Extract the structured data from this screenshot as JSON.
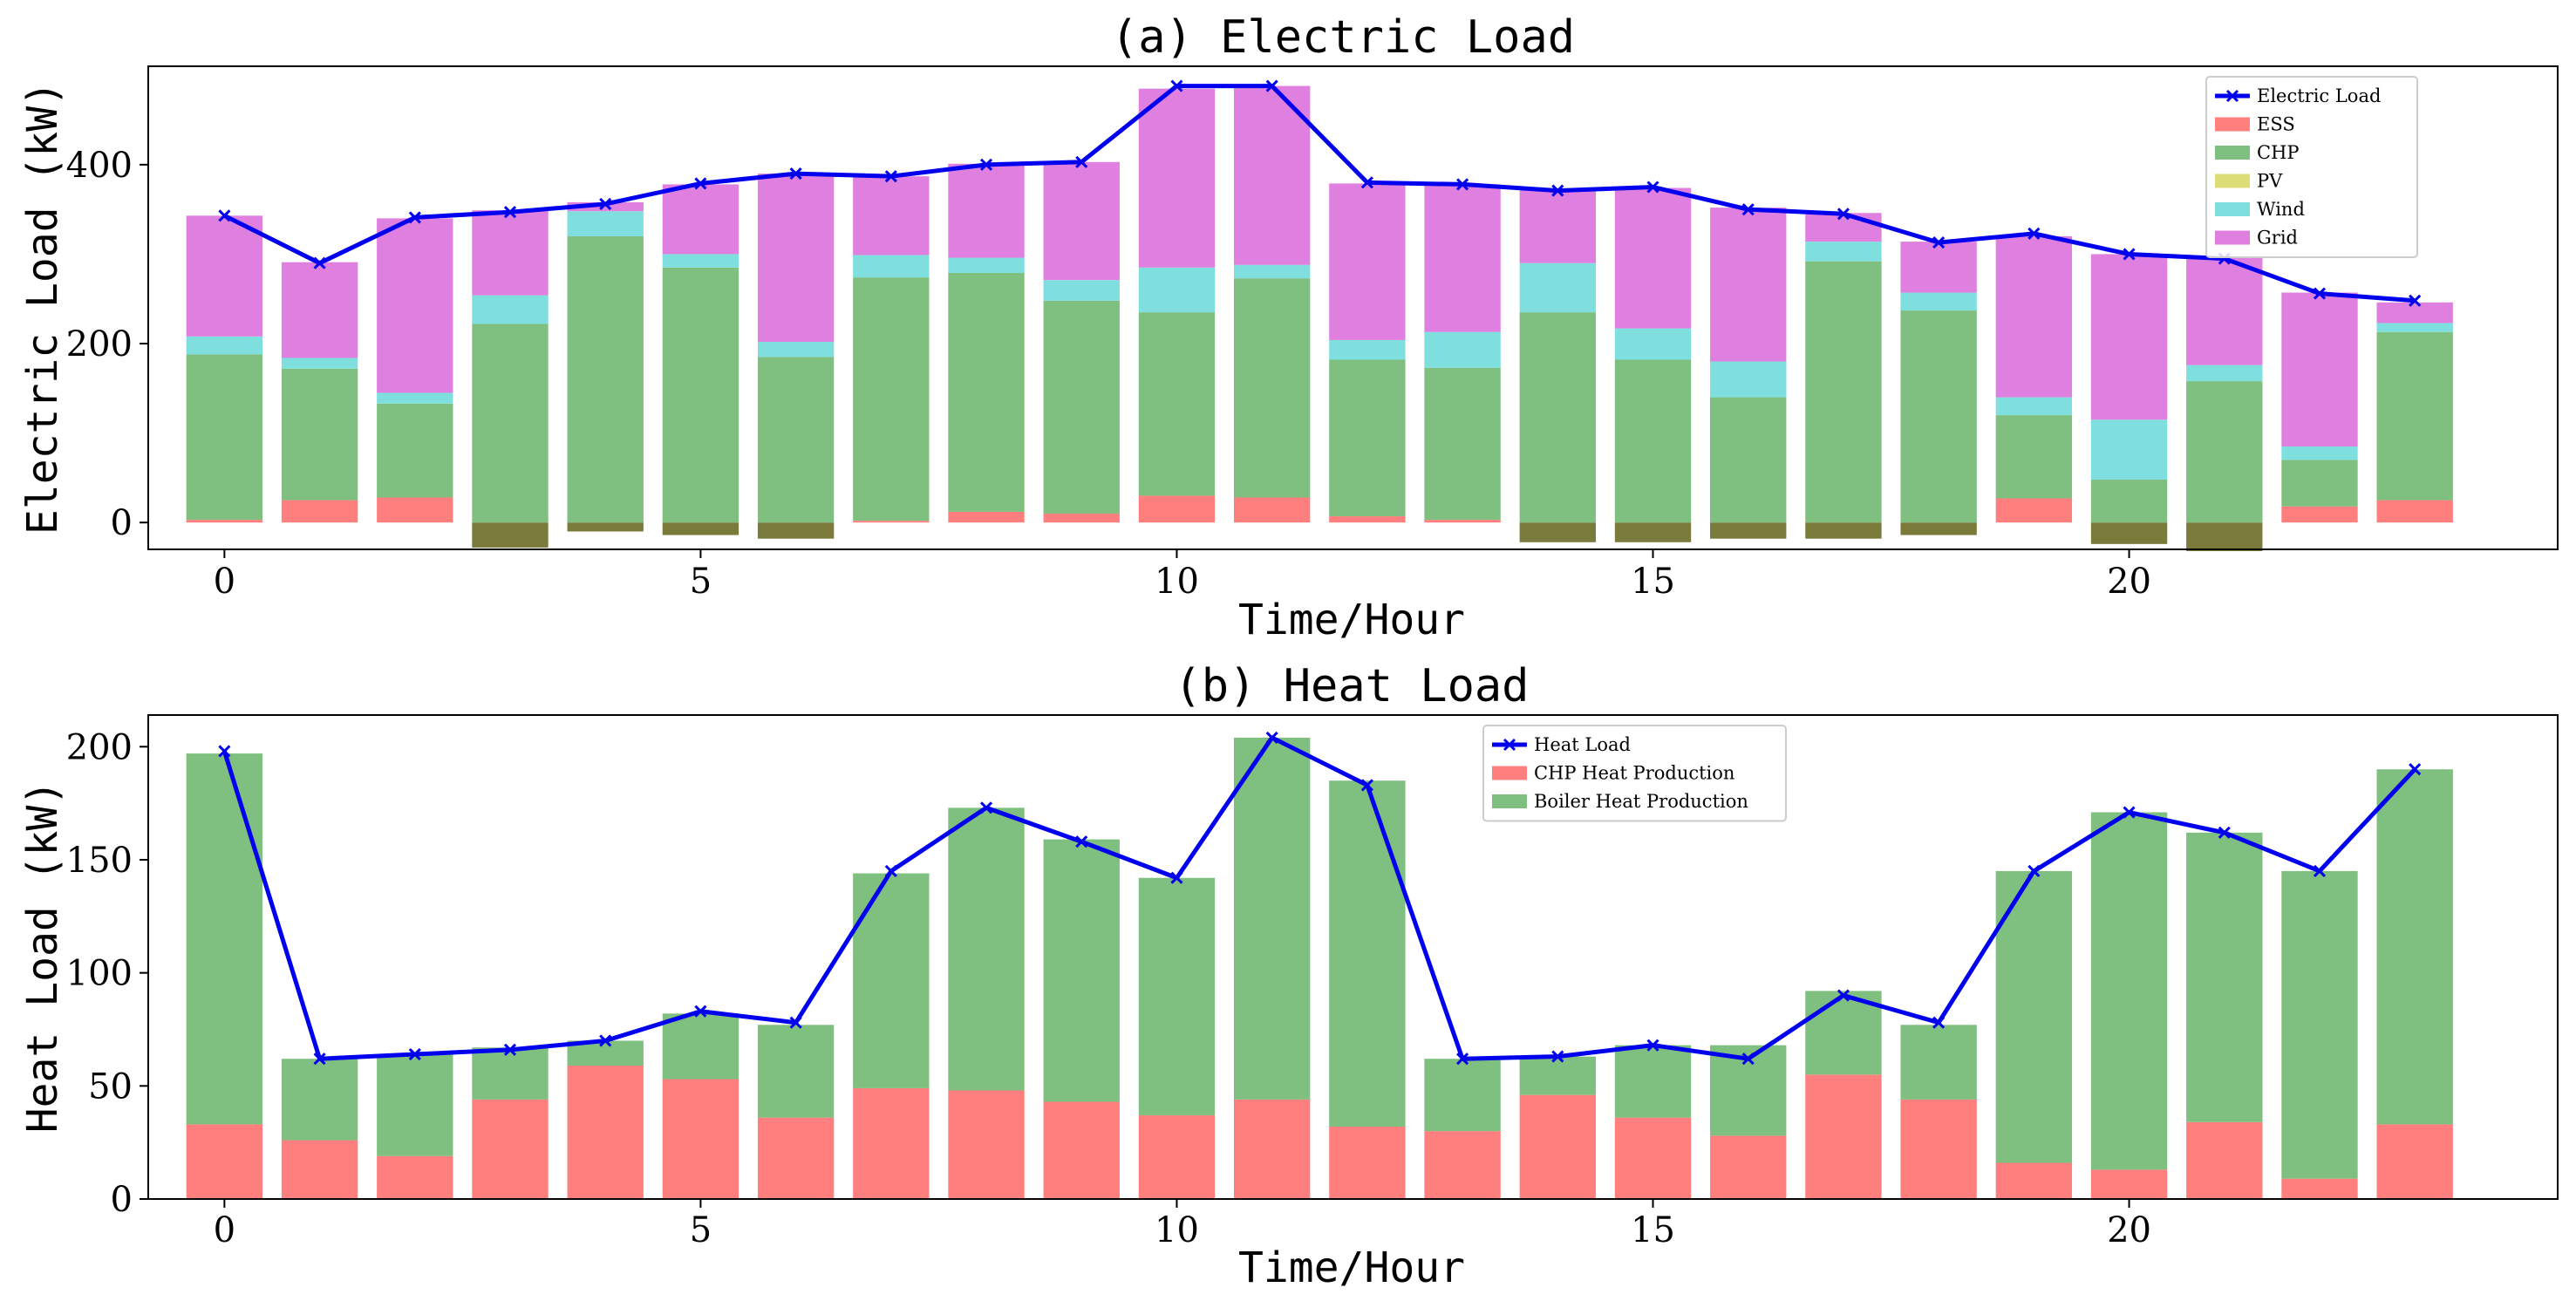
{
  "chart_data": [
    {
      "type": "bar",
      "stacked": true,
      "title": "(a) Electric Load",
      "xlabel": "Time/Hour",
      "ylabel": "Electric Load (kW)",
      "xlim": [
        -0.8,
        24.5
      ],
      "ylim": [
        -30,
        510
      ],
      "xticks": [
        0,
        5,
        10,
        15,
        20
      ],
      "yticks": [
        0,
        200,
        400
      ],
      "legend_position": "upper-right",
      "categories": [
        0,
        1,
        2,
        3,
        4,
        5,
        6,
        7,
        8,
        9,
        10,
        11,
        12,
        13,
        14,
        15,
        16,
        17,
        18,
        19,
        20,
        21,
        22,
        23
      ],
      "series": [
        {
          "name": "ESS",
          "kind": "bar",
          "color": "#ff7f7f",
          "values": [
            3,
            25,
            28,
            -28,
            -10,
            -14,
            -18,
            2,
            12,
            10,
            30,
            28,
            7,
            3,
            -22,
            -22,
            -18,
            -18,
            -14,
            27,
            -24,
            -32,
            18,
            25
          ]
        },
        {
          "name": "CHP",
          "kind": "bar",
          "color": "#7fbf7f",
          "values": [
            185,
            147,
            105,
            222,
            320,
            285,
            185,
            272,
            267,
            238,
            205,
            245,
            175,
            170,
            235,
            182,
            140,
            292,
            237,
            93,
            48,
            158,
            52,
            188
          ]
        },
        {
          "name": "PV",
          "kind": "bar",
          "color": "#dddd77",
          "values": [
            0,
            0,
            0,
            0,
            0,
            0,
            0,
            0,
            0,
            0,
            0,
            0,
            0,
            0,
            0,
            0,
            0,
            0,
            0,
            0,
            0,
            0,
            0,
            0
          ]
        },
        {
          "name": "Wind",
          "kind": "bar",
          "color": "#7fdfdf",
          "values": [
            20,
            12,
            12,
            32,
            28,
            15,
            17,
            25,
            17,
            23,
            50,
            15,
            22,
            40,
            55,
            35,
            40,
            22,
            20,
            20,
            67,
            18,
            15,
            10
          ]
        },
        {
          "name": "Grid",
          "kind": "bar",
          "color": "#df7fdf",
          "values": [
            135,
            107,
            195,
            95,
            10,
            78,
            188,
            88,
            105,
            132,
            200,
            200,
            175,
            165,
            82,
            157,
            172,
            32,
            57,
            180,
            185,
            120,
            172,
            23
          ]
        },
        {
          "name": "Electric Load",
          "kind": "line",
          "color": "#0000ee",
          "values": [
            343,
            290,
            341,
            347,
            356,
            379,
            390,
            387,
            400,
            403,
            488,
            488,
            380,
            378,
            371,
            375,
            350,
            345,
            313,
            323,
            300,
            295,
            256,
            248
          ]
        }
      ]
    },
    {
      "type": "bar",
      "stacked": true,
      "title": "(b) Heat Load",
      "xlabel": "Time/Hour",
      "ylabel": "Heat Load (kW)",
      "xlim": [
        -0.8,
        24.5
      ],
      "ylim": [
        0,
        214
      ],
      "xticks": [
        0,
        5,
        10,
        15,
        20
      ],
      "yticks": [
        0,
        50,
        100,
        150,
        200
      ],
      "legend_position": "upper-center",
      "categories": [
        0,
        1,
        2,
        3,
        4,
        5,
        6,
        7,
        8,
        9,
        10,
        11,
        12,
        13,
        14,
        15,
        16,
        17,
        18,
        19,
        20,
        21,
        22,
        23
      ],
      "series": [
        {
          "name": "CHP Heat Production",
          "kind": "bar",
          "color": "#ff7f7f",
          "values": [
            33,
            26,
            19,
            44,
            59,
            53,
            36,
            49,
            48,
            43,
            37,
            44,
            32,
            30,
            46,
            36,
            28,
            55,
            44,
            16,
            13,
            34,
            9,
            33
          ]
        },
        {
          "name": "Boiler Heat Production",
          "kind": "bar",
          "color": "#7fbf7f",
          "values": [
            164,
            36,
            45,
            23,
            11,
            29,
            41,
            95,
            125,
            116,
            105,
            160,
            153,
            32,
            17,
            32,
            40,
            37,
            33,
            129,
            158,
            128,
            136,
            157
          ]
        },
        {
          "name": "Heat Load",
          "kind": "line",
          "color": "#0000ee",
          "values": [
            198,
            62,
            64,
            66,
            70,
            83,
            78,
            145,
            173,
            158,
            142,
            204,
            183,
            62,
            63,
            68,
            62,
            90,
            78,
            145,
            171,
            162,
            145,
            190
          ]
        }
      ]
    }
  ]
}
